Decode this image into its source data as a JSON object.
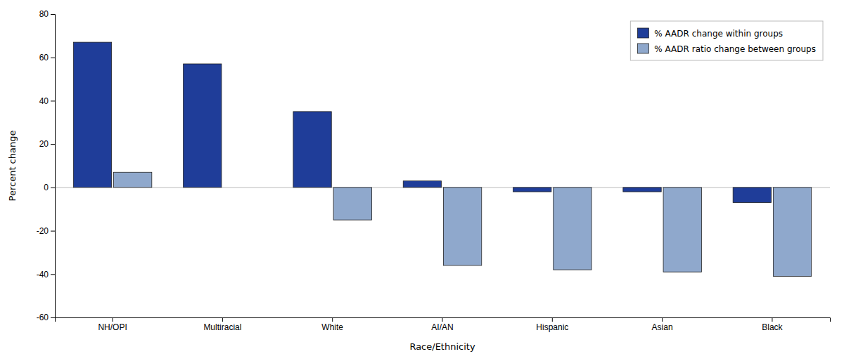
{
  "chart_data": {
    "type": "bar",
    "categories": [
      "NH/OPI",
      "Multiracial",
      "White",
      "AI/AN",
      "Hispanic",
      "Asian",
      "Black"
    ],
    "series": [
      {
        "name": "% AADR change within groups",
        "color": "#1f3d99",
        "values": [
          67,
          57,
          35,
          3,
          -2,
          -2,
          -7
        ]
      },
      {
        "name": "% AADR ratio change between groups",
        "color": "#8fa8cc",
        "values": [
          7,
          0,
          -15,
          -36,
          -38,
          -39,
          -41
        ]
      }
    ],
    "xlabel": "Race/Ethnicity",
    "ylabel": "Percent change",
    "ylim": [
      -60,
      80
    ],
    "yticks": [
      -60,
      -40,
      -20,
      0,
      20,
      40,
      60,
      80
    ],
    "grid": false,
    "legend": "upper right"
  }
}
